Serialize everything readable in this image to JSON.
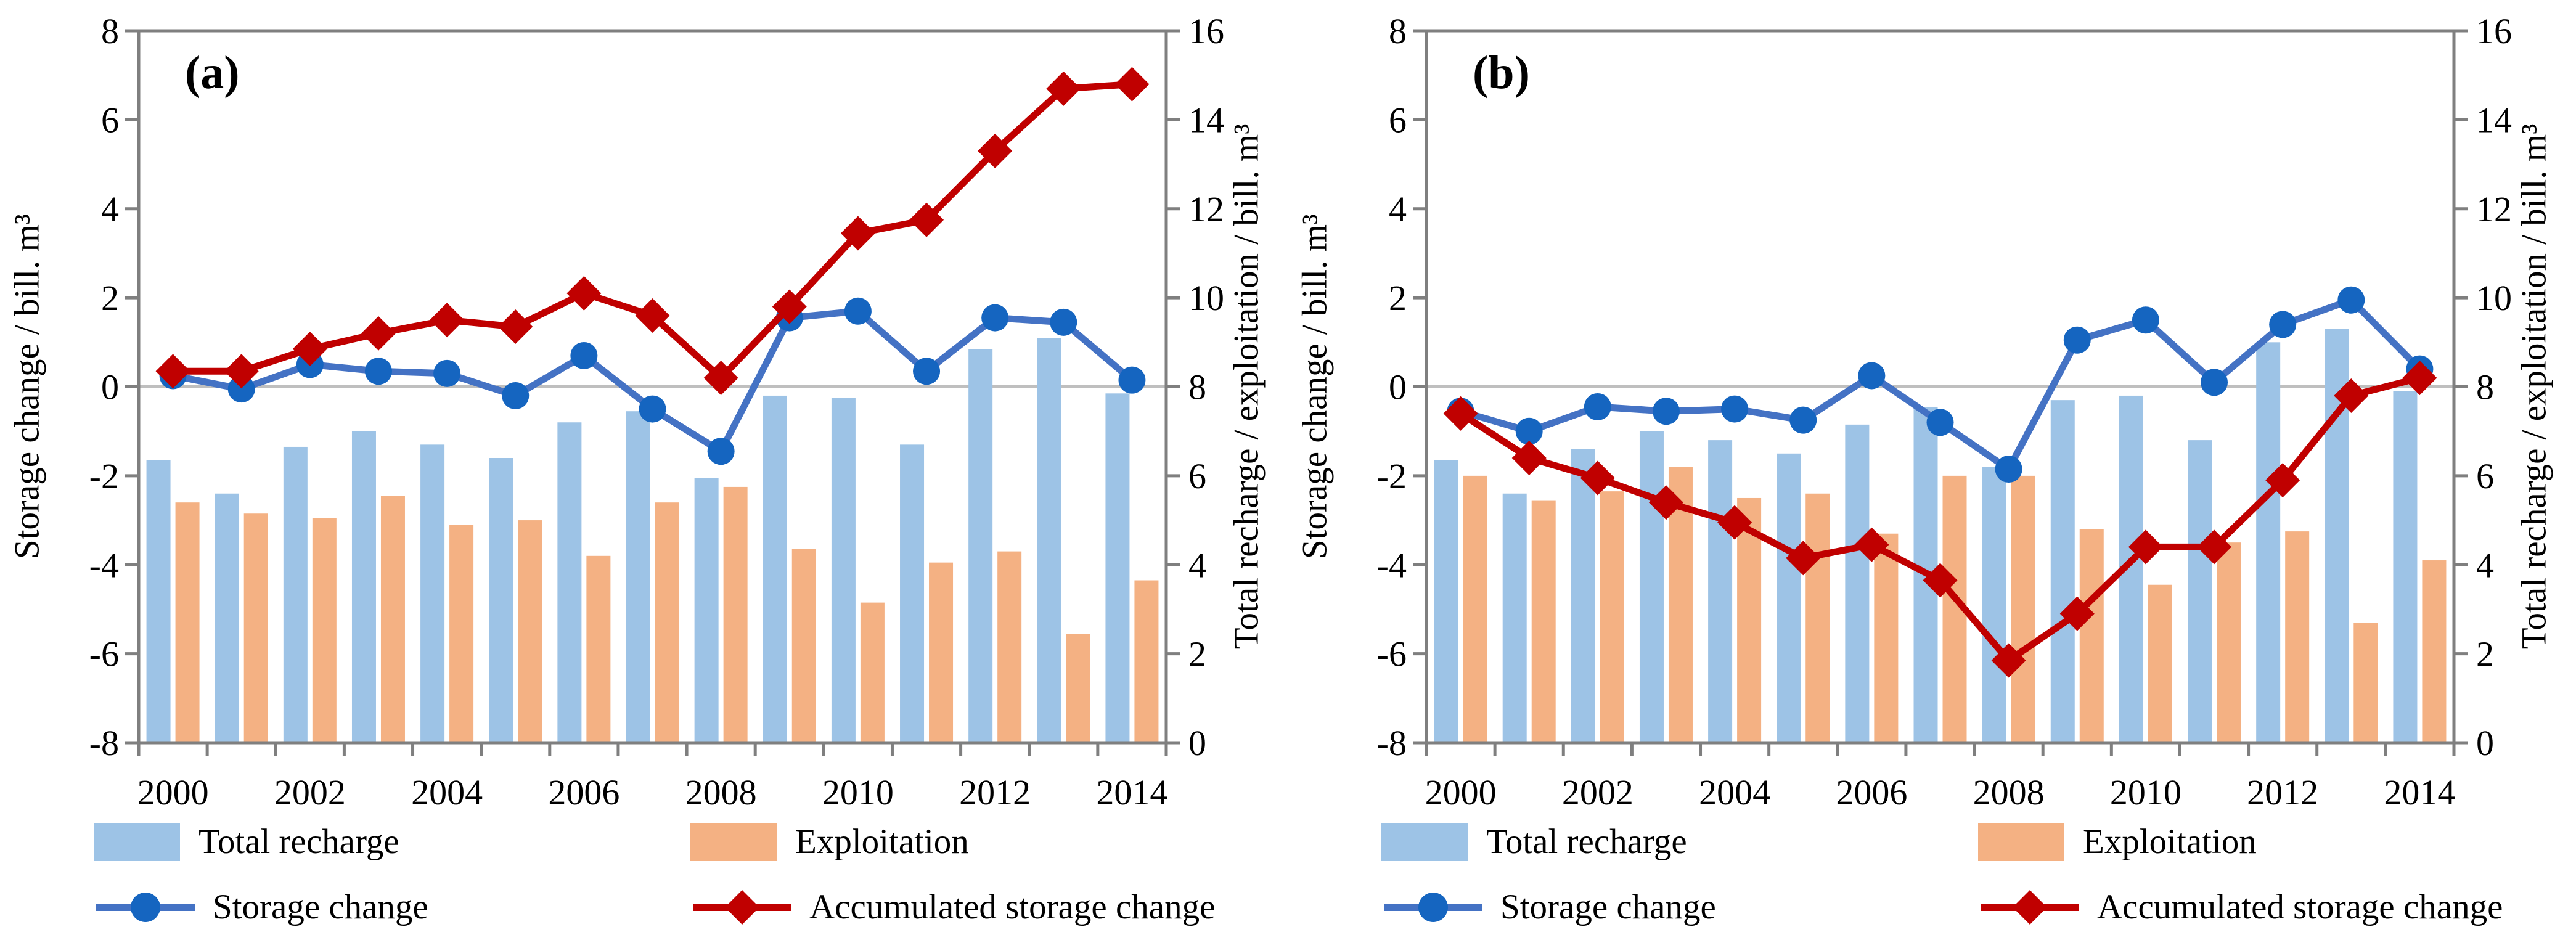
{
  "figure": {
    "background": "#FFFFFF"
  },
  "colors": {
    "recharge_bar": "#9DC3E6",
    "exploitation_bar": "#F4B183",
    "storage_line": "#4472C4",
    "storage_marker": "#1565C0",
    "accumulated_line": "#C00000",
    "accumulated_marker": "#C00000",
    "axis_gray": "#7F7F7F",
    "zero_line_gray": "#BFBFBF",
    "text_color": "#000000"
  },
  "axes": {
    "left_title": "Storage change / bill. m³",
    "right_title": "Total recharge / exploitation / bill. m³",
    "left_range": [
      -8,
      8
    ],
    "right_range": [
      0,
      16
    ],
    "tick_step": 2,
    "x_label_step": 2
  },
  "chart_data": [
    {
      "type": "bar",
      "subtype": "bar+line dual-axis",
      "panel_label": "(a)",
      "title": "(a)",
      "xlabel": "",
      "ylabel_left": "Storage change / bill. m³",
      "ylabel_right": "Total recharge / exploitation / bill. m³",
      "ylim_left": [
        -8,
        8
      ],
      "ylim_right": [
        0,
        16
      ],
      "categories": [
        2000,
        2001,
        2002,
        2003,
        2004,
        2005,
        2006,
        2007,
        2008,
        2009,
        2010,
        2011,
        2012,
        2013,
        2014
      ],
      "series": [
        {
          "name": "Total recharge",
          "type": "bar",
          "axis": "right",
          "values": [
            6.35,
            5.6,
            6.65,
            7.0,
            6.7,
            6.4,
            7.2,
            7.45,
            5.95,
            7.8,
            7.75,
            6.7,
            8.85,
            9.1,
            7.85
          ]
        },
        {
          "name": "Exploitation",
          "type": "bar",
          "axis": "right",
          "values": [
            5.4,
            5.15,
            5.05,
            5.55,
            4.9,
            5.0,
            4.2,
            5.4,
            5.75,
            4.35,
            3.15,
            4.05,
            4.3,
            2.45,
            3.65
          ]
        },
        {
          "name": "Storage change",
          "type": "line",
          "marker": "circle",
          "axis": "left",
          "values": [
            0.25,
            -0.05,
            0.5,
            0.35,
            0.3,
            -0.2,
            0.7,
            -0.5,
            -1.45,
            1.55,
            1.7,
            0.35,
            1.55,
            1.45,
            0.15
          ]
        },
        {
          "name": "Accumulated storage change",
          "type": "line",
          "marker": "diamond",
          "axis": "left",
          "values": [
            0.35,
            0.35,
            0.85,
            1.2,
            1.5,
            1.35,
            2.1,
            1.6,
            0.2,
            1.8,
            3.45,
            3.75,
            5.3,
            6.7,
            6.8
          ]
        }
      ]
    },
    {
      "type": "bar",
      "subtype": "bar+line dual-axis",
      "panel_label": "(b)",
      "title": "(b)",
      "xlabel": "",
      "ylabel_left": "Storage change / bill. m³",
      "ylabel_right": "Total recharge / exploitation / bill. m³",
      "ylim_left": [
        -8,
        8
      ],
      "ylim_right": [
        0,
        16
      ],
      "categories": [
        2000,
        2001,
        2002,
        2003,
        2004,
        2005,
        2006,
        2007,
        2008,
        2009,
        2010,
        2011,
        2012,
        2013,
        2014
      ],
      "series": [
        {
          "name": "Total recharge",
          "type": "bar",
          "axis": "right",
          "values": [
            6.35,
            5.6,
            6.6,
            7.0,
            6.8,
            6.5,
            7.15,
            7.55,
            6.2,
            7.7,
            7.8,
            6.8,
            9.0,
            9.3,
            7.9
          ]
        },
        {
          "name": "Exploitation",
          "type": "bar",
          "axis": "right",
          "values": [
            6.0,
            5.45,
            5.65,
            6.2,
            5.5,
            5.6,
            4.7,
            6.0,
            6.0,
            4.8,
            3.55,
            4.5,
            4.75,
            2.7,
            4.1
          ]
        },
        {
          "name": "Storage change",
          "type": "line",
          "marker": "circle",
          "axis": "left",
          "values": [
            -0.55,
            -1.0,
            -0.45,
            -0.55,
            -0.5,
            -0.75,
            0.25,
            -0.8,
            -1.85,
            1.05,
            1.5,
            0.1,
            1.4,
            1.95,
            0.4
          ]
        },
        {
          "name": "Accumulated storage change",
          "type": "line",
          "marker": "diamond",
          "axis": "left",
          "values": [
            -0.6,
            -1.6,
            -2.05,
            -2.6,
            -3.05,
            -3.85,
            -3.55,
            -4.35,
            -6.15,
            -5.1,
            -3.6,
            -3.6,
            -2.1,
            -0.2,
            0.2
          ]
        }
      ]
    }
  ]
}
